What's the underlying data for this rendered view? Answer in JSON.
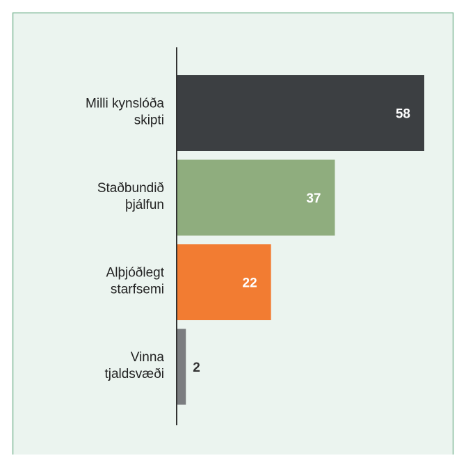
{
  "chart_data": {
    "type": "hbar",
    "categories": [
      [
        "Milli kynslóða",
        "skipti"
      ],
      [
        "Staðbundið",
        "þjálfun"
      ],
      [
        "Alþjóðlegt",
        "starfsemi"
      ],
      [
        "Vinna",
        "tjaldsvæði"
      ]
    ],
    "values": [
      58,
      37,
      22,
      2
    ],
    "colors": [
      "#3c3f42",
      "#8fad7e",
      "#f27c32",
      "#7b7d80"
    ]
  }
}
